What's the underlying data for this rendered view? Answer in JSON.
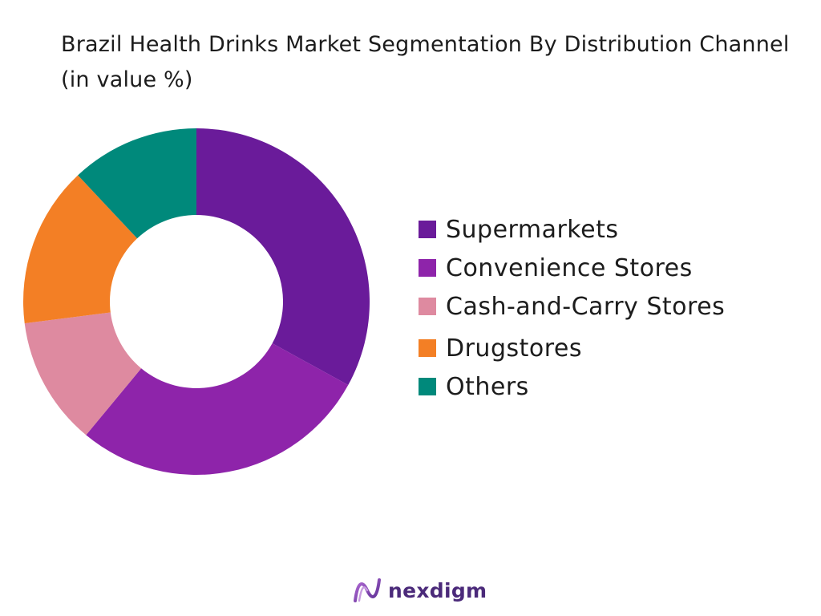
{
  "chart_data": {
    "type": "pie",
    "title": "Brazil Health Drinks Market Segmentation By Distribution Channel (in value %)",
    "categories": [
      "Supermarkets",
      "Convenience Stores",
      "Cash-and-Carry Stores",
      "Drugstores",
      "Others"
    ],
    "values": [
      33,
      28,
      12,
      15,
      12
    ],
    "colors": [
      "#6a1b9a",
      "#8e24aa",
      "#de8aa0",
      "#f37f25",
      "#00897b"
    ],
    "donut": true,
    "legend_position": "right"
  },
  "brand": {
    "name": "nexdigm",
    "logo_icon": "nexdigm-logo-icon"
  }
}
